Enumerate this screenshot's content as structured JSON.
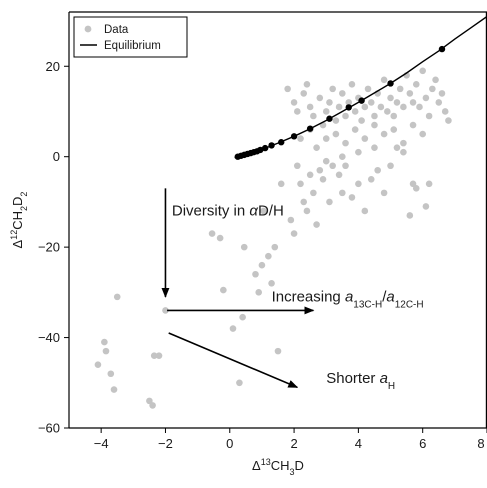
{
  "chart_data": {
    "type": "scatter",
    "xlabel_html": "Δ<tspan baseline-shift='super' font-size='9'>13</tspan>CH<tspan baseline-shift='sub' font-size='9'>3</tspan>D",
    "ylabel_html": "Δ<tspan baseline-shift='super' font-size='9'>12</tspan>CH<tspan baseline-shift='sub' font-size='9'>2</tspan>D<tspan baseline-shift='sub' font-size='9'>2</tspan>",
    "xlim": [
      -5,
      8
    ],
    "ylim": [
      -60,
      32
    ],
    "x_ticks": [
      -4,
      -2,
      0,
      2,
      4,
      6,
      8
    ],
    "y_ticks": [
      -60,
      -40,
      -20,
      0,
      20
    ],
    "legend": {
      "position": "top-left",
      "entries": [
        {
          "label": "Data",
          "marker": "circle",
          "color": "#c4c4c4"
        },
        {
          "label": "Equilibrium",
          "marker": "line",
          "color": "#000000"
        }
      ]
    },
    "series": [
      {
        "name": "Data",
        "color": "#c4c4c4",
        "points": [
          [
            -4.1,
            -46
          ],
          [
            -3.9,
            -41
          ],
          [
            -3.85,
            -43
          ],
          [
            -3.7,
            -48
          ],
          [
            -3.6,
            -51.5
          ],
          [
            -3.5,
            -31
          ],
          [
            -2.5,
            -54
          ],
          [
            -2.4,
            -55
          ],
          [
            -2.35,
            -44
          ],
          [
            -2.2,
            -44
          ],
          [
            -2.0,
            -34
          ],
          [
            -0.55,
            -17
          ],
          [
            -0.3,
            -18
          ],
          [
            -0.2,
            -29.5
          ],
          [
            0.1,
            -38
          ],
          [
            0.3,
            -50
          ],
          [
            0.4,
            -35.5
          ],
          [
            0.45,
            -20
          ],
          [
            0.8,
            -26
          ],
          [
            0.9,
            -30
          ],
          [
            1.0,
            -24
          ],
          [
            1.05,
            -12
          ],
          [
            1.2,
            -22
          ],
          [
            1.3,
            -28
          ],
          [
            1.4,
            -20
          ],
          [
            1.5,
            -43
          ],
          [
            1.6,
            -6
          ],
          [
            1.9,
            -14
          ],
          [
            2.0,
            -17
          ],
          [
            2.1,
            -2
          ],
          [
            2.2,
            -6
          ],
          [
            2.3,
            -10
          ],
          [
            2.4,
            -12
          ],
          [
            2.5,
            -4
          ],
          [
            2.6,
            -8
          ],
          [
            2.7,
            -15
          ],
          [
            2.8,
            -3
          ],
          [
            2.9,
            -5
          ],
          [
            3.0,
            -1
          ],
          [
            3.1,
            -10
          ],
          [
            3.2,
            -2
          ],
          [
            3.4,
            -4
          ],
          [
            3.5,
            -8
          ],
          [
            3.6,
            -2
          ],
          [
            3.8,
            -9
          ],
          [
            4.0,
            -6
          ],
          [
            4.2,
            -12
          ],
          [
            4.4,
            -5
          ],
          [
            4.6,
            -3
          ],
          [
            4.8,
            -8
          ],
          [
            5.0,
            -2
          ],
          [
            5.2,
            2
          ],
          [
            5.4,
            1
          ],
          [
            5.6,
            -13
          ],
          [
            5.7,
            -6
          ],
          [
            5.8,
            -7
          ],
          [
            6.1,
            -11
          ],
          [
            6.2,
            -6
          ],
          [
            1.8,
            15
          ],
          [
            2.0,
            12
          ],
          [
            2.1,
            10
          ],
          [
            2.3,
            14
          ],
          [
            2.4,
            16
          ],
          [
            2.5,
            11
          ],
          [
            2.6,
            9
          ],
          [
            2.8,
            13
          ],
          [
            2.9,
            7
          ],
          [
            3.0,
            10
          ],
          [
            3.1,
            12
          ],
          [
            3.2,
            15
          ],
          [
            3.3,
            8
          ],
          [
            3.4,
            11
          ],
          [
            3.5,
            14
          ],
          [
            3.6,
            9
          ],
          [
            3.7,
            12
          ],
          [
            3.8,
            16
          ],
          [
            3.9,
            10
          ],
          [
            4.0,
            13
          ],
          [
            4.1,
            8
          ],
          [
            4.2,
            11
          ],
          [
            4.3,
            15
          ],
          [
            4.4,
            12
          ],
          [
            4.5,
            9
          ],
          [
            4.6,
            14
          ],
          [
            4.7,
            11
          ],
          [
            4.8,
            17
          ],
          [
            4.9,
            10
          ],
          [
            5.0,
            13
          ],
          [
            5.1,
            9
          ],
          [
            5.2,
            12
          ],
          [
            5.3,
            15
          ],
          [
            5.4,
            11
          ],
          [
            5.5,
            18
          ],
          [
            5.6,
            14
          ],
          [
            5.7,
            12
          ],
          [
            5.8,
            16
          ],
          [
            5.9,
            11
          ],
          [
            6.0,
            19
          ],
          [
            6.1,
            13
          ],
          [
            6.2,
            9
          ],
          [
            6.3,
            15
          ],
          [
            6.4,
            17
          ],
          [
            6.5,
            12
          ],
          [
            6.6,
            14
          ],
          [
            6.7,
            10
          ],
          [
            6.8,
            8
          ],
          [
            2.2,
            4
          ],
          [
            2.5,
            6
          ],
          [
            2.7,
            2
          ],
          [
            3.0,
            4
          ],
          [
            3.3,
            5
          ],
          [
            3.6,
            3
          ],
          [
            3.9,
            6
          ],
          [
            4.2,
            4
          ],
          [
            4.5,
            7
          ],
          [
            4.8,
            5
          ],
          [
            5.1,
            6
          ],
          [
            5.4,
            3
          ],
          [
            5.7,
            7
          ],
          [
            6.0,
            5
          ],
          [
            3.5,
            0
          ],
          [
            4.0,
            1
          ],
          [
            4.5,
            2
          ]
        ]
      },
      {
        "name": "Equilibrium",
        "color": "#000000",
        "curve": [
          [
            0.15,
            -0.2
          ],
          [
            0.5,
            0.5
          ],
          [
            1.0,
            1.6
          ],
          [
            1.5,
            3.0
          ],
          [
            2.0,
            4.5
          ],
          [
            2.5,
            6.2
          ],
          [
            3.0,
            8.0
          ],
          [
            3.5,
            10.0
          ],
          [
            4.0,
            12.0
          ],
          [
            4.5,
            14.1
          ],
          [
            5.0,
            16.2
          ],
          [
            5.5,
            18.5
          ],
          [
            6.0,
            21.0
          ],
          [
            6.5,
            23.4
          ],
          [
            7.0,
            26.0
          ],
          [
            7.5,
            28.5
          ],
          [
            8.0,
            31.0
          ]
        ],
        "markers": [
          [
            0.25,
            0.0
          ],
          [
            0.35,
            0.2
          ],
          [
            0.45,
            0.4
          ],
          [
            0.55,
            0.6
          ],
          [
            0.65,
            0.8
          ],
          [
            0.75,
            1.0
          ],
          [
            0.85,
            1.2
          ],
          [
            0.95,
            1.5
          ],
          [
            1.1,
            1.9
          ],
          [
            1.3,
            2.5
          ],
          [
            1.6,
            3.2
          ],
          [
            2.0,
            4.5
          ],
          [
            2.5,
            6.2
          ],
          [
            3.1,
            8.4
          ],
          [
            3.7,
            10.9
          ],
          [
            4.1,
            12.4
          ],
          [
            5.0,
            16.2
          ],
          [
            6.6,
            23.8
          ]
        ]
      }
    ],
    "annotations": [
      {
        "id": "diversity",
        "text_html": "Diversity in <tspan font-style='italic'>α</tspan>D/H",
        "arrow": {
          "from": [
            -2.0,
            -7
          ],
          "to": [
            -2.0,
            -31
          ]
        },
        "text_at": [
          -1.8,
          -13
        ]
      },
      {
        "id": "increasing",
        "text_html": "Increasing <tspan font-style='italic'>a</tspan><tspan baseline-shift='sub' font-size='10'>13C-H</tspan>/<tspan font-style='italic'>a</tspan><tspan baseline-shift='sub' font-size='10'>12C-H</tspan>",
        "arrow": {
          "from": [
            -1.95,
            -34
          ],
          "to": [
            2.6,
            -34
          ]
        },
        "text_at": [
          1.3,
          -32
        ]
      },
      {
        "id": "shorter",
        "text_html": "Shorter <tspan font-style='italic'>a</tspan><tspan baseline-shift='sub' font-size='10'>H</tspan>",
        "arrow": {
          "from": [
            -1.9,
            -39
          ],
          "to": [
            2.1,
            -51
          ]
        },
        "text_at": [
          3.0,
          -50
        ]
      }
    ]
  }
}
